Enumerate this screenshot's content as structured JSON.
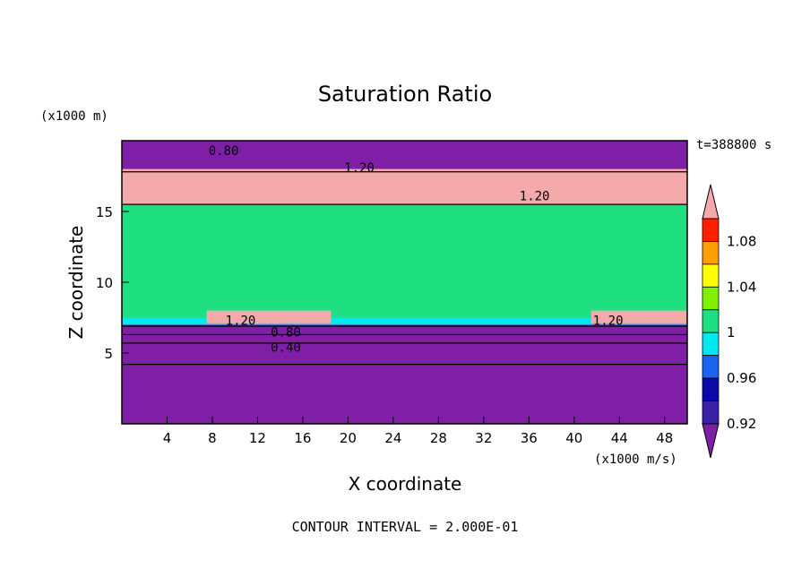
{
  "chart_data": {
    "type": "heatmap",
    "title": "Saturation Ratio",
    "xlabel": "X coordinate",
    "ylabel": "Z coordinate",
    "x_unit": "(x1000 m/s)",
    "y_unit": "(x1000 m)",
    "time_label": "t=388800 s",
    "footer": "CONTOUR INTERVAL = 2.000E-01",
    "xlim": [
      0,
      50
    ],
    "ylim": [
      0,
      20
    ],
    "x_ticks": [
      4,
      8,
      12,
      16,
      20,
      24,
      28,
      32,
      36,
      40,
      44,
      48
    ],
    "y_ticks": [
      5,
      10,
      15
    ],
    "colorbar": {
      "levels": [
        0.9,
        0.92,
        0.94,
        0.96,
        0.98,
        1.0,
        1.02,
        1.04,
        1.06,
        1.08,
        1.1
      ],
      "colors": [
        "#7f1fa6",
        "#3a1fa8",
        "#0a0aa8",
        "#1a64f0",
        "#00e8f0",
        "#1ee080",
        "#80f000",
        "#ffff00",
        "#ffa000",
        "#ff2000",
        "#f4aaaa"
      ],
      "tick_labels": [
        "0.92",
        "0.96",
        "1",
        "1.04",
        "1.08"
      ],
      "tick_values": [
        0.92,
        0.96,
        1.0,
        1.04,
        1.08
      ],
      "extend": "both"
    },
    "contour_labels": [
      {
        "text": "0.80",
        "x": 9,
        "y": 19.3
      },
      {
        "text": "1.20",
        "x": 21,
        "y": 18.1
      },
      {
        "text": "1.20",
        "x": 36.5,
        "y": 16.1
      },
      {
        "text": "1.20",
        "x": 10.5,
        "y": 7.3
      },
      {
        "text": "1.20",
        "x": 43,
        "y": 7.3
      },
      {
        "text": "0.80",
        "x": 14.5,
        "y": 6.5
      },
      {
        "text": "0.40",
        "x": 14.5,
        "y": 5.4
      }
    ],
    "regions": [
      {
        "level": 0.9,
        "zmin": 0,
        "zmax": 6.9,
        "xmin": 0,
        "xmax": 50
      },
      {
        "level": 0.9,
        "zmin": 17.8,
        "zmax": 20,
        "xmin": 0,
        "xmax": 50
      },
      {
        "level": 0.99,
        "zmin": 7.0,
        "zmax": 15.5,
        "xmin": 0,
        "xmax": 50
      },
      {
        "level": 1.01,
        "zmin": 7.5,
        "zmax": 15.5,
        "xmin": 0,
        "xmax": 50
      },
      {
        "level": 1.1,
        "zmin": 15.5,
        "zmax": 18.0,
        "xmin": 0,
        "xmax": 50
      },
      {
        "level": 1.1,
        "zmin": 7.1,
        "zmax": 8.0,
        "xmin": 7.5,
        "xmax": 18.5
      },
      {
        "level": 1.1,
        "zmin": 7.1,
        "zmax": 8.0,
        "xmin": 41.5,
        "xmax": 50
      }
    ]
  }
}
